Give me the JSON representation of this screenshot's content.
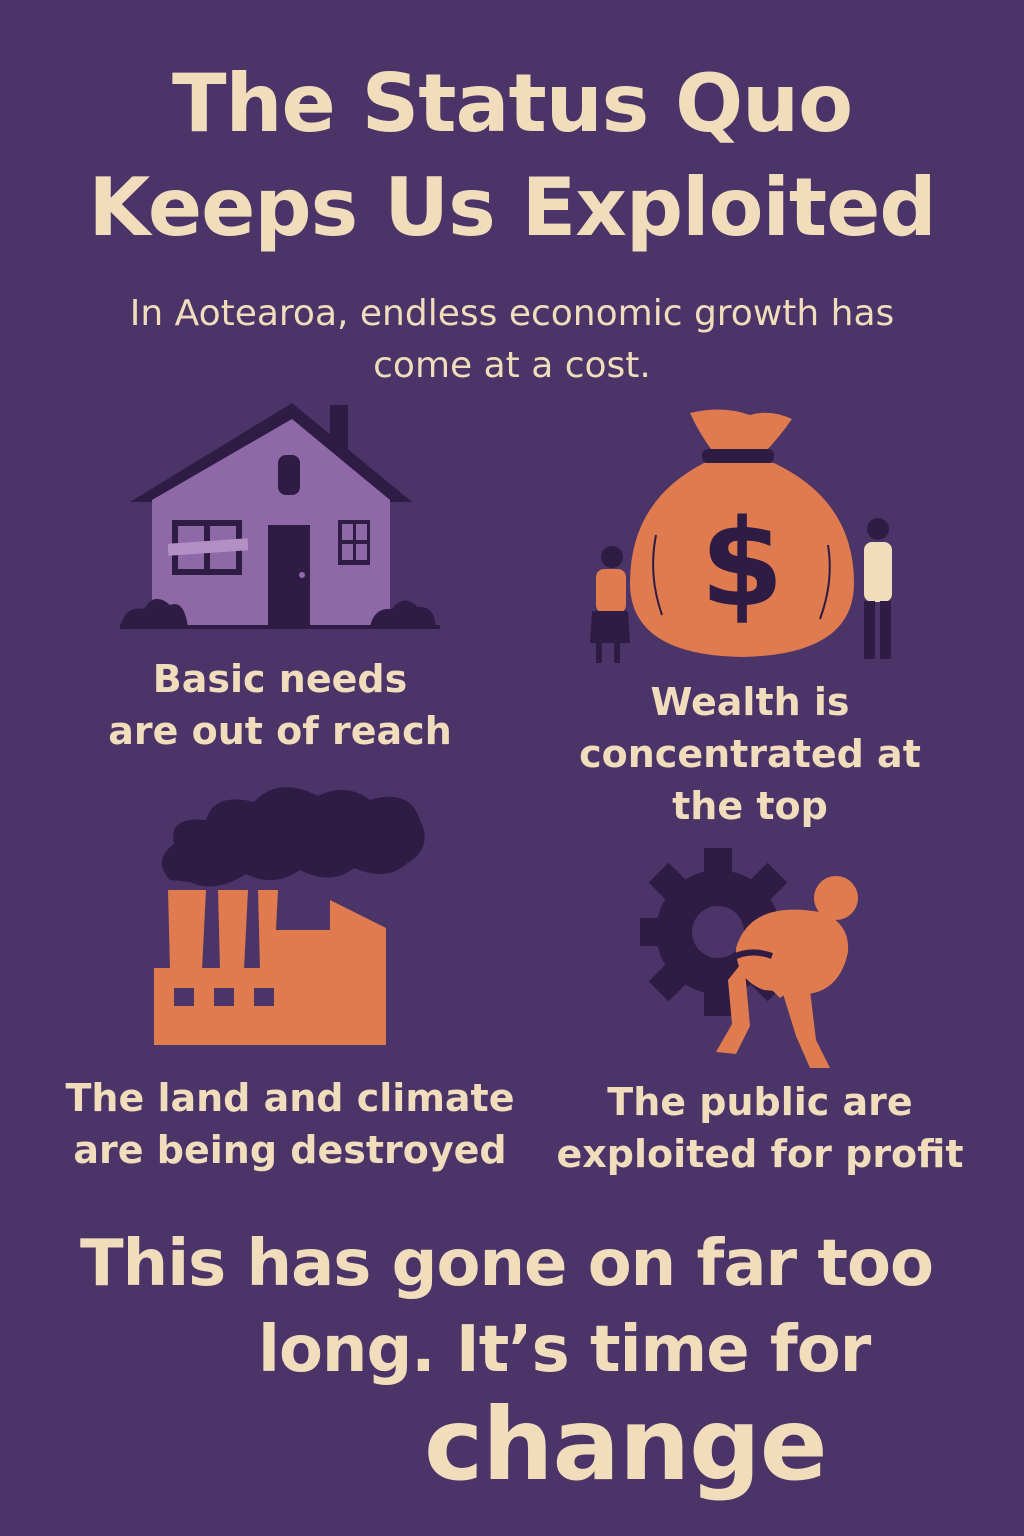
{
  "title": {
    "line1": "The Status Quo",
    "line2": "Keeps Us Exploited"
  },
  "subtitle": {
    "line1": "In Aotearoa, endless economic growth has",
    "line2": "come at a cost."
  },
  "panels": [
    {
      "icon": "house-icon",
      "lines": [
        "Basic needs",
        "are out of reach"
      ]
    },
    {
      "icon": "money-bag-icon",
      "lines": [
        "Wealth is",
        "concentrated at",
        "the top"
      ]
    },
    {
      "icon": "factory-icon",
      "lines": [
        "The land and climate",
        "are being destroyed"
      ]
    },
    {
      "icon": "gear-burden-icon",
      "lines": [
        "The public are",
        "exploited for profit"
      ]
    }
  ],
  "closing": {
    "line1": "This has gone on far too",
    "line2": "long. It’s time for",
    "line3": "change"
  },
  "colors": {
    "background": "#4a3468",
    "text": "#f1dcbc",
    "accent": "#e07a4f",
    "dark": "#2e1c45",
    "house": "#8f68a8"
  }
}
